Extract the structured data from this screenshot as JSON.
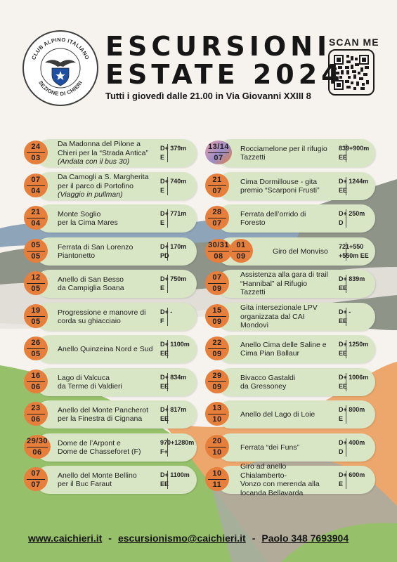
{
  "club": {
    "ring_top": "CLUB ALPINO ITALIANO",
    "ring_bottom": "SEZIONE DI CHIERI",
    "badge": "CLUB ALPINO ITALIANO"
  },
  "header": {
    "title_line1": "ESCURSIONI",
    "title_line2": "ESTATE 2024",
    "subtitle": "Tutti i giovedì dalle 21.00 in Via Giovanni XXIII 8",
    "scan_label": "SCAN ME"
  },
  "colors": {
    "date_circle": "#e77f3c",
    "pill": "#d9e6c6",
    "bg_gray": "#8f9489",
    "bg_blue": "#8ea4b8",
    "bg_green": "#96c06a",
    "bg_orange": "#eda76c"
  },
  "events_left": [
    {
      "day": "24",
      "month": "03",
      "title_lines": [
        "Da Madonna del Pilone a",
        "Chieri per la “Strada Antica”"
      ],
      "note": "(Andata con il bus 30)",
      "gain": "D+ 379m",
      "grade": "E"
    },
    {
      "day": "07",
      "month": "04",
      "title_lines": [
        "Da Camogli a S. Margherita",
        "per il parco di Portofino"
      ],
      "note": "(Viaggio in pullman)",
      "gain": "D+ 740m",
      "grade": "E"
    },
    {
      "day": "21",
      "month": "04",
      "title_lines": [
        "Monte Soglio",
        "per la Cima Mares"
      ],
      "note": "",
      "gain": "D+ 771m",
      "grade": "E"
    },
    {
      "day": "05",
      "month": "05",
      "title_lines": [
        "Ferrata di San Lorenzo",
        "Piantonetto"
      ],
      "note": "",
      "gain": "D+ 170m",
      "grade": "PD"
    },
    {
      "day": "12",
      "month": "05",
      "title_lines": [
        "Anello di San Besso",
        "da Campiglia Soana"
      ],
      "note": "",
      "gain": "D+ 750m",
      "grade": "E"
    },
    {
      "day": "19",
      "month": "05",
      "title_lines": [
        "Progressione e manovre di",
        "corda su ghiacciaio"
      ],
      "note": "",
      "gain": "D+    -",
      "grade": "F"
    },
    {
      "day": "26",
      "month": "05",
      "title_lines": [
        "Anello Quinzeina Nord e Sud"
      ],
      "note": "",
      "gain": "D+ 1100m",
      "grade": "EE"
    },
    {
      "day": "16",
      "month": "06",
      "title_lines": [
        "Lago di Valcuca",
        "da Terme di Valdieri"
      ],
      "note": "",
      "gain": "D+ 834m",
      "grade": "EE"
    },
    {
      "day": "23",
      "month": "06",
      "title_lines": [
        "Anello del Monte Pancherot",
        "per la Finestra di Cignana"
      ],
      "note": "",
      "gain": "D+ 817m",
      "grade": "EE"
    },
    {
      "day": "29/30",
      "month": "06",
      "title_lines": [
        "Dome de l’Arpont e",
        "Dome de Chasseforet (F)"
      ],
      "note": "",
      "gain": "970+1280m",
      "grade": "F+"
    },
    {
      "day": "07",
      "month": "07",
      "title_lines": [
        "Anello del Monte Bellino",
        "per il Buc Faraut"
      ],
      "note": "",
      "gain": "D+ 1100m",
      "grade": "EE"
    }
  ],
  "events_right": [
    {
      "day": "13/14",
      "month": "07",
      "title_lines": [
        "Rocciamelone per il rifugio",
        "Tazzetti"
      ],
      "gain": "839+900m",
      "grade": "EE"
    },
    {
      "day": "21",
      "month": "07",
      "title_lines": [
        "Cima Dormillouse - gita",
        "premio “Scarponi Frusti”"
      ],
      "gain": "D+ 1244m",
      "grade": "EE"
    },
    {
      "day": "28",
      "month": "07",
      "title_lines": [
        "Ferrata dell’orrido di Foresto"
      ],
      "gain": "D+ 250m",
      "grade": "D"
    },
    {
      "day": "30/31",
      "month": "08",
      "day2": "01",
      "month2": "09",
      "title_lines": [
        "Giro del Monviso"
      ],
      "gain": "721+550",
      "grade": "+550m  EE"
    },
    {
      "day": "07",
      "month": "09",
      "title_lines": [
        "Assistenza alla gara di trail",
        "“Hannibal” al Rifugio Tazzetti"
      ],
      "gain": "D+ 839m",
      "grade": "EE"
    },
    {
      "day": "15",
      "month": "09",
      "title_lines": [
        "Gita intersezionale LPV",
        "organizzata dal CAI Mondovì"
      ],
      "gain": "D+    -",
      "grade": "EE"
    },
    {
      "day": "22",
      "month": "09",
      "title_lines": [
        "Anello Cima delle Saline e",
        "Cima Pian Ballaur"
      ],
      "gain": "D+ 1250m",
      "grade": "EE"
    },
    {
      "day": "29",
      "month": "09",
      "title_lines": [
        "Bivacco Gastaldi",
        "da Gressoney"
      ],
      "gain": "D+ 1006m",
      "grade": "EE"
    },
    {
      "day": "13",
      "month": "10",
      "title_lines": [
        "Anello del Lago di Loie"
      ],
      "gain": "D+ 800m",
      "grade": "E"
    },
    {
      "day": "20",
      "month": "10",
      "title_lines": [
        "Ferrata “dei Funs”"
      ],
      "gain": "D+ 400m",
      "grade": "D"
    },
    {
      "day": "10",
      "month": "11",
      "title_lines": [
        "Giro ad anello Chialamberto-",
        "Vonzo con merenda alla",
        "locanda Bellavarda"
      ],
      "gain": "D+ 600m",
      "grade": "E"
    }
  ],
  "footer": {
    "website": "www.caichieri.it",
    "email": "escursionismo@caichieri.it",
    "phone": "Paolo 348 7693904",
    "sep": "-"
  }
}
